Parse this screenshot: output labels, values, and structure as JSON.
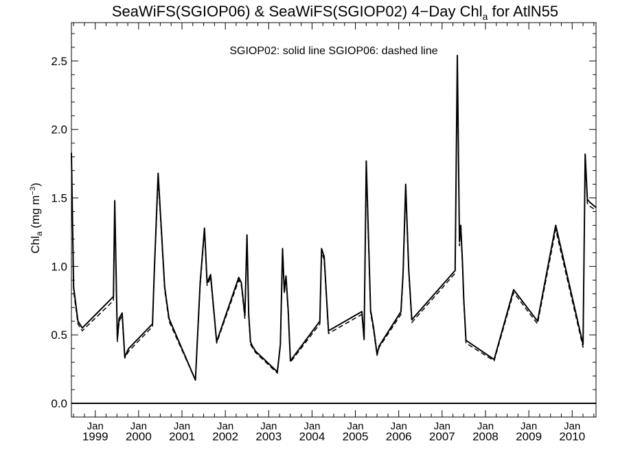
{
  "chart_data": {
    "type": "line",
    "title": "SeaWiFS(SGIOP06) & SeaWiFS(SGIOP02) 4−Day Chl",
    "title_subscript": "a",
    "title_suffix": " for AtlN55",
    "annotation": "SGIOP02: solid line   SGIOP06: dashed line",
    "ylabel": "Chl",
    "ylabel_subscript": "a",
    "ylabel_units_prefix": " (mg m",
    "ylabel_units_superscript": "−3",
    "ylabel_units_suffix": ")",
    "ylim": [
      -0.1,
      2.78
    ],
    "yticks": [
      0.0,
      0.5,
      1.0,
      1.5,
      2.0,
      2.5
    ],
    "ytick_labels": [
      "0.0",
      "0.5",
      "1.0",
      "1.5",
      "2.0",
      "2.5"
    ],
    "xlim": [
      1998.45,
      2010.55
    ],
    "xticks": [
      1999.0,
      2000.0,
      2001.0,
      2002.0,
      2003.0,
      2004.0,
      2005.0,
      2006.0,
      2007.0,
      2008.0,
      2009.0,
      2010.0
    ],
    "xtick_month_label": "Jan",
    "xtick_labels": [
      "1999",
      "2000",
      "2001",
      "2002",
      "2003",
      "2004",
      "2005",
      "2006",
      "2007",
      "2008",
      "2009",
      "2010"
    ],
    "reference_line_y": 0.0,
    "series": [
      {
        "name": "SGIOP02",
        "style": "solid",
        "x": [
          1998.45,
          1998.5,
          1998.6,
          1998.7,
          1999.42,
          1999.45,
          1999.51,
          1999.55,
          1999.62,
          1999.68,
          1999.77,
          2000.32,
          2000.36,
          2000.45,
          2000.6,
          2000.7,
          2001.31,
          2001.42,
          2001.52,
          2001.58,
          2001.66,
          2001.8,
          2002.31,
          2002.37,
          2002.45,
          2002.5,
          2002.54,
          2002.58,
          2002.62,
          2002.7,
          2003.2,
          2003.27,
          2003.32,
          2003.36,
          2003.4,
          2003.45,
          2003.5,
          2004.18,
          2004.22,
          2004.28,
          2004.38,
          2005.15,
          2005.2,
          2005.25,
          2005.35,
          2005.42,
          2005.5,
          2005.55,
          2006.05,
          2006.1,
          2006.16,
          2006.23,
          2006.3,
          2007.3,
          2007.35,
          2007.4,
          2007.43,
          2007.47,
          2007.5,
          2007.55,
          2008.2,
          2008.65,
          2009.2,
          2009.62,
          2010.25,
          2010.3,
          2010.35,
          2010.4,
          2010.55
        ],
        "y": [
          1.83,
          0.85,
          0.6,
          0.55,
          0.78,
          1.48,
          0.47,
          0.62,
          0.66,
          0.34,
          0.4,
          0.58,
          0.95,
          1.68,
          0.85,
          0.62,
          0.17,
          0.88,
          1.28,
          0.88,
          0.94,
          0.45,
          0.92,
          0.88,
          0.64,
          1.23,
          0.65,
          0.45,
          0.42,
          0.38,
          0.23,
          0.43,
          1.13,
          0.82,
          0.93,
          0.68,
          0.31,
          0.6,
          1.13,
          1.07,
          0.53,
          0.67,
          0.47,
          1.77,
          0.68,
          0.55,
          0.36,
          0.42,
          0.67,
          0.95,
          1.6,
          0.98,
          0.61,
          0.97,
          2.54,
          1.18,
          1.3,
          1.03,
          0.76,
          0.46,
          0.32,
          0.83,
          0.6,
          1.3,
          0.43,
          1.82,
          1.49,
          1.47,
          1.43
        ]
      },
      {
        "name": "SGIOP06",
        "style": "dashed",
        "x": [
          1998.45,
          1998.5,
          1998.6,
          1998.7,
          1999.42,
          1999.45,
          1999.51,
          1999.55,
          1999.62,
          1999.68,
          1999.77,
          2000.32,
          2000.36,
          2000.45,
          2000.6,
          2000.7,
          2001.31,
          2001.42,
          2001.52,
          2001.58,
          2001.66,
          2001.8,
          2002.31,
          2002.37,
          2002.45,
          2002.5,
          2002.54,
          2002.58,
          2002.62,
          2002.7,
          2003.2,
          2003.27,
          2003.32,
          2003.36,
          2003.4,
          2003.45,
          2003.5,
          2004.18,
          2004.22,
          2004.28,
          2004.38,
          2005.15,
          2005.2,
          2005.25,
          2005.35,
          2005.42,
          2005.5,
          2005.55,
          2006.05,
          2006.1,
          2006.16,
          2006.23,
          2006.3,
          2007.3,
          2007.35,
          2007.4,
          2007.43,
          2007.47,
          2007.5,
          2007.55,
          2008.2,
          2008.65,
          2009.2,
          2009.62,
          2010.25,
          2010.3,
          2010.35,
          2010.4,
          2010.55
        ],
        "y": [
          1.8,
          0.82,
          0.58,
          0.53,
          0.75,
          1.46,
          0.45,
          0.6,
          0.64,
          0.33,
          0.38,
          0.56,
          0.93,
          1.65,
          0.83,
          0.6,
          0.17,
          0.86,
          1.26,
          0.86,
          0.92,
          0.44,
          0.9,
          0.86,
          0.62,
          1.2,
          0.63,
          0.43,
          0.41,
          0.37,
          0.22,
          0.42,
          1.1,
          0.8,
          0.91,
          0.66,
          0.3,
          0.58,
          1.1,
          1.05,
          0.51,
          0.65,
          0.46,
          1.73,
          0.66,
          0.53,
          0.35,
          0.41,
          0.65,
          0.93,
          1.57,
          0.96,
          0.59,
          0.95,
          2.5,
          1.15,
          1.27,
          1.01,
          0.74,
          0.44,
          0.31,
          0.81,
          0.58,
          1.27,
          0.41,
          1.79,
          1.46,
          1.44,
          1.41
        ]
      }
    ]
  }
}
